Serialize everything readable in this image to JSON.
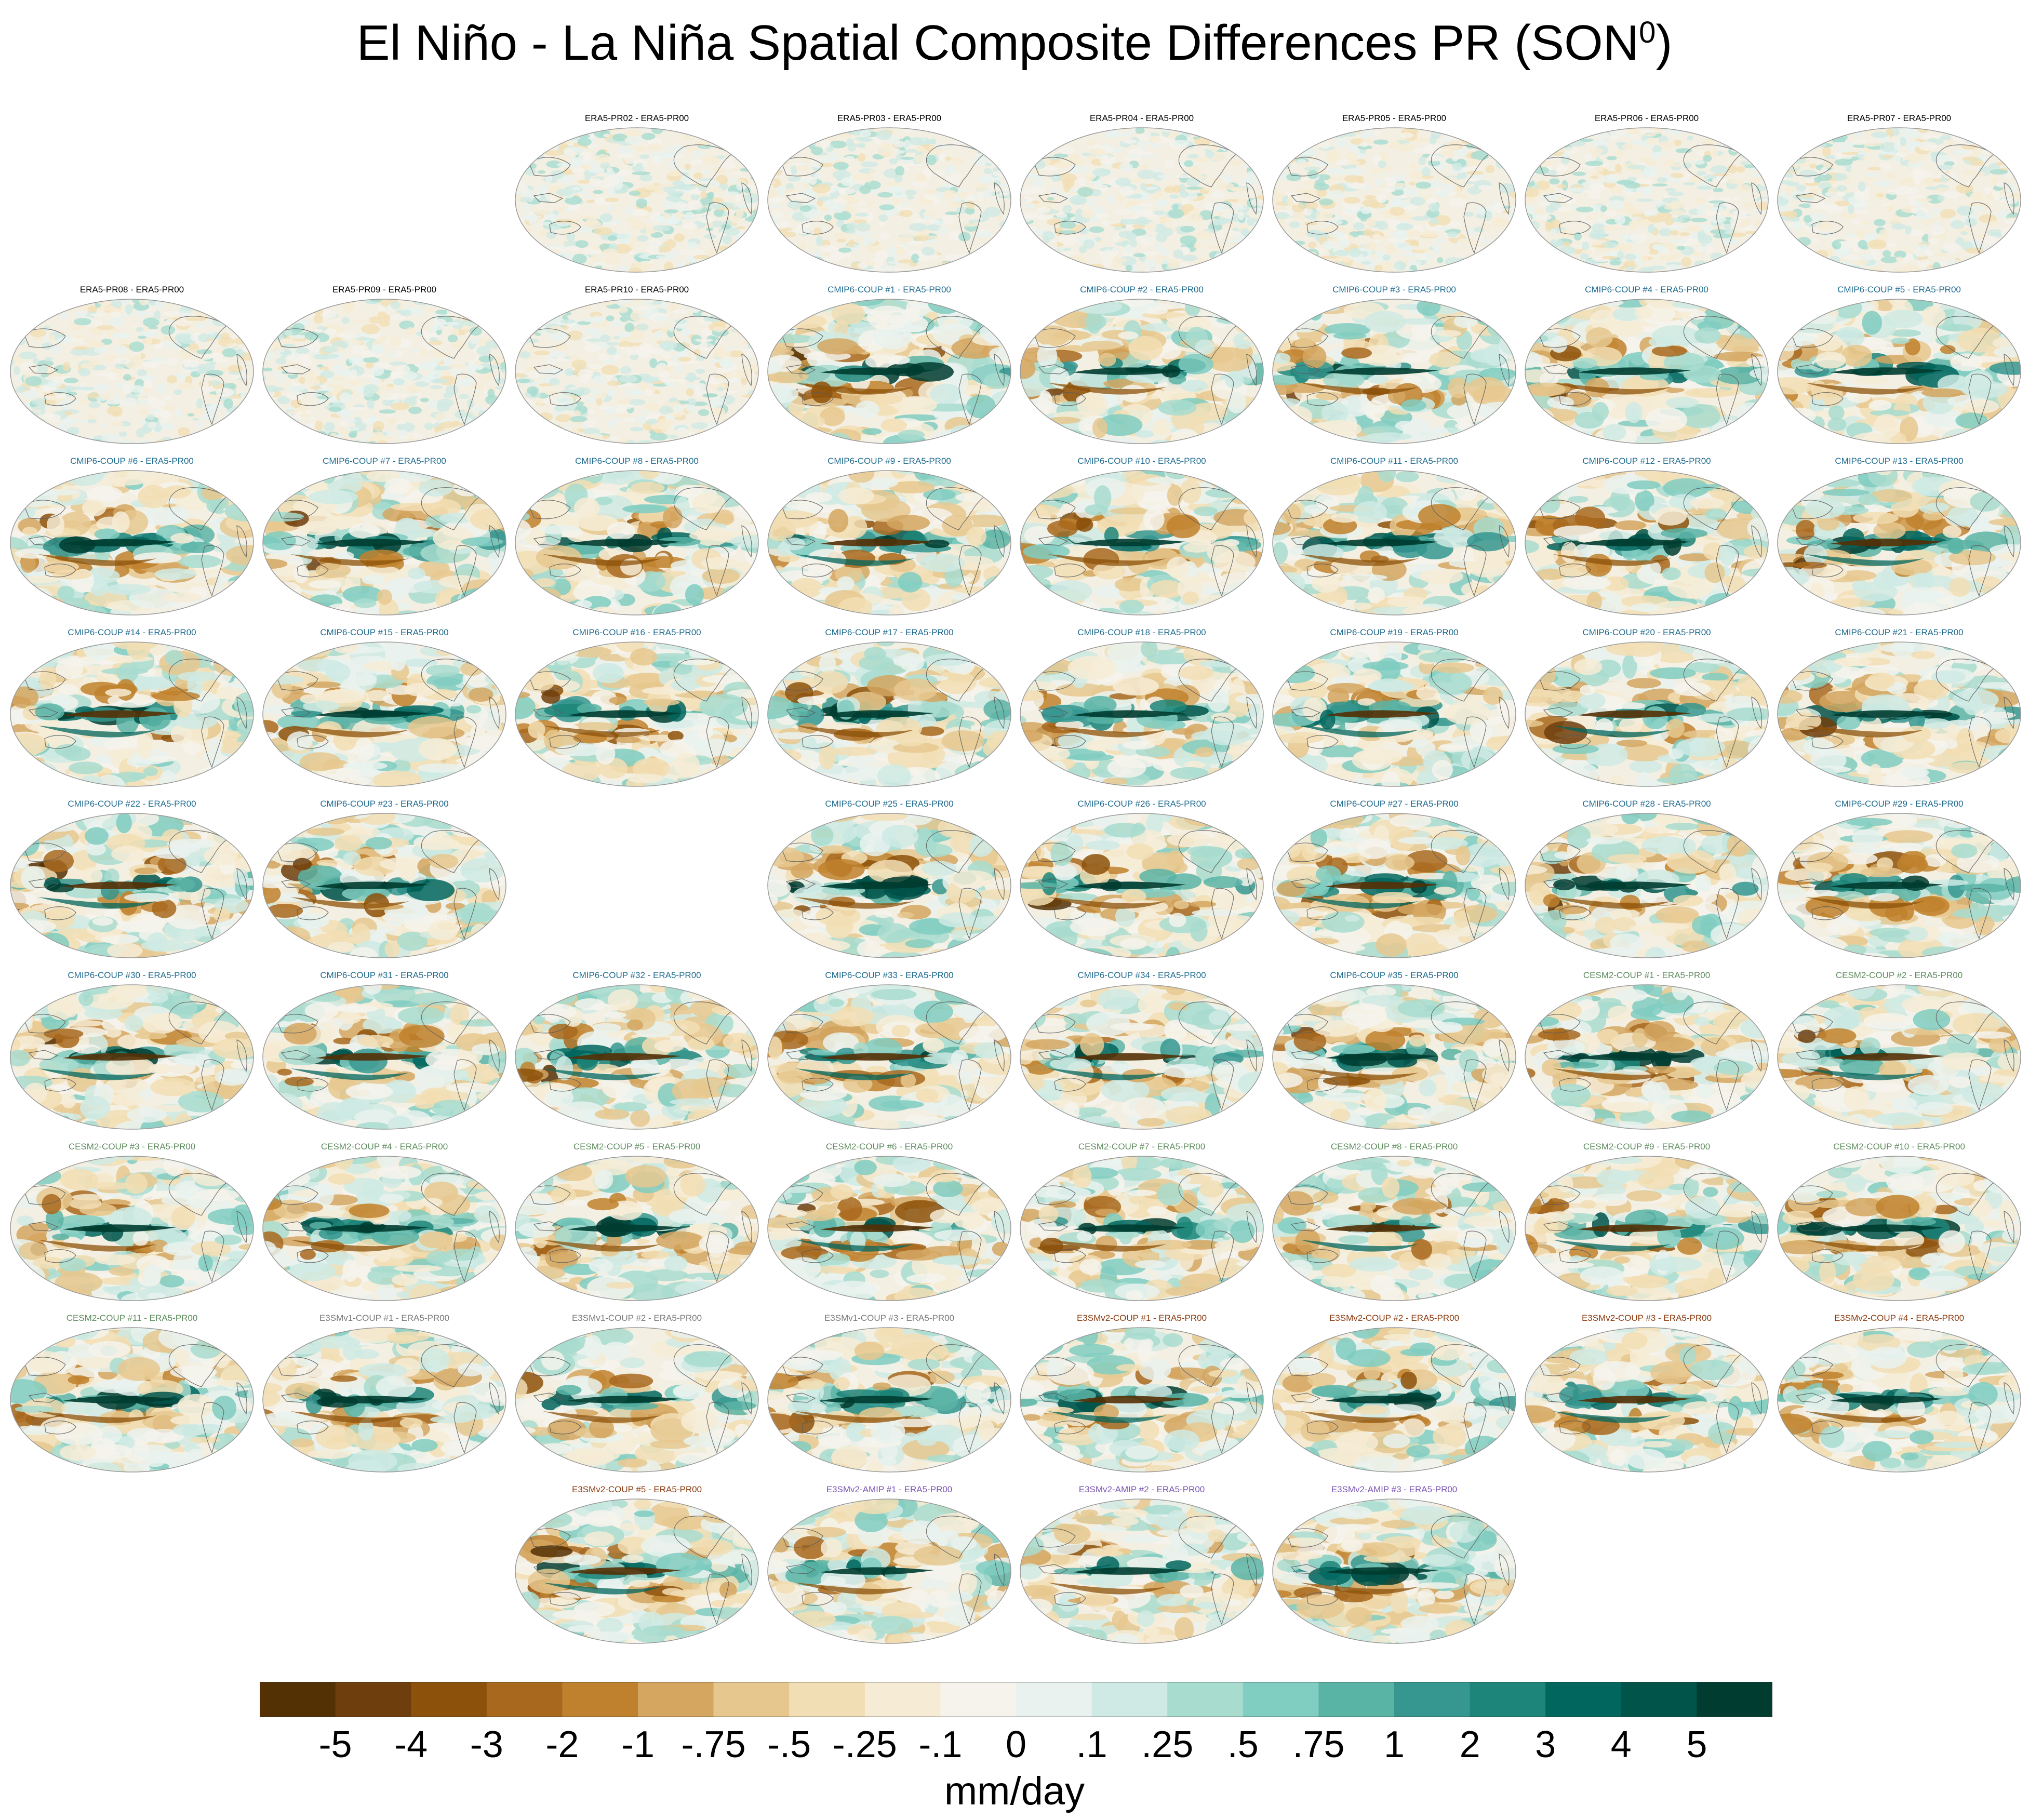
{
  "figure": {
    "title_main": "El Niño - La Niña Spatial Composite Differences PR (SON",
    "title_sup": "0",
    "title_close": ")"
  },
  "group_colors": {
    "ERA5": "#000000",
    "CMIP6": "#1f6b8f",
    "CESM2": "#5e8c5e",
    "E3SMv1": "#7a7a7a",
    "E3SMv2-COUP": "#8b3a0e",
    "E3SMv2-AMIP": "#7a55b5"
  },
  "chart_data": {
    "type": "heatmap",
    "description_unit": "mm/day",
    "colorbar": {
      "label": "mm/day",
      "tick_labels": [
        "-5",
        "-4",
        "-3",
        "-2",
        "-1",
        "-.75",
        "-.5",
        "-.25",
        "-.1",
        "0",
        ".1",
        ".25",
        ".5",
        ".75",
        "1",
        "2",
        "3",
        "4",
        "5"
      ],
      "colors": [
        "#543005",
        "#6e3e0d",
        "#8c510a",
        "#a8691f",
        "#bf812d",
        "#d4a660",
        "#e6c88f",
        "#f2deb4",
        "#f6ecd6",
        "#f5f3ec",
        "#e9f2ef",
        "#cfeae4",
        "#a8dccf",
        "#80cdc1",
        "#5ab4a6",
        "#35978f",
        "#1d8579",
        "#01665e",
        "#00544a",
        "#003c30"
      ]
    },
    "panels": [
      {
        "label": "ERA5-PR02 - ERA5-PR00",
        "group": "ERA5",
        "row": 0,
        "col": 2
      },
      {
        "label": "ERA5-PR03 - ERA5-PR00",
        "group": "ERA5",
        "row": 0,
        "col": 3
      },
      {
        "label": "ERA5-PR04 - ERA5-PR00",
        "group": "ERA5",
        "row": 0,
        "col": 4
      },
      {
        "label": "ERA5-PR05 - ERA5-PR00",
        "group": "ERA5",
        "row": 0,
        "col": 5
      },
      {
        "label": "ERA5-PR06 - ERA5-PR00",
        "group": "ERA5",
        "row": 0,
        "col": 6
      },
      {
        "label": "ERA5-PR07 - ERA5-PR00",
        "group": "ERA5",
        "row": 0,
        "col": 7
      },
      {
        "label": "ERA5-PR08 - ERA5-PR00",
        "group": "ERA5",
        "row": 1,
        "col": 0
      },
      {
        "label": "ERA5-PR09 - ERA5-PR00",
        "group": "ERA5",
        "row": 1,
        "col": 1
      },
      {
        "label": "ERA5-PR10 - ERA5-PR00",
        "group": "ERA5",
        "row": 1,
        "col": 2
      },
      {
        "label": "CMIP6-COUP  #1 - ERA5-PR00",
        "group": "CMIP6",
        "row": 1,
        "col": 3
      },
      {
        "label": "CMIP6-COUP  #2 - ERA5-PR00",
        "group": "CMIP6",
        "row": 1,
        "col": 4
      },
      {
        "label": "CMIP6-COUP  #3 - ERA5-PR00",
        "group": "CMIP6",
        "row": 1,
        "col": 5
      },
      {
        "label": "CMIP6-COUP  #4 - ERA5-PR00",
        "group": "CMIP6",
        "row": 1,
        "col": 6
      },
      {
        "label": "CMIP6-COUP  #5 - ERA5-PR00",
        "group": "CMIP6",
        "row": 1,
        "col": 7
      },
      {
        "label": "CMIP6-COUP  #6 - ERA5-PR00",
        "group": "CMIP6",
        "row": 2,
        "col": 0
      },
      {
        "label": "CMIP6-COUP  #7 - ERA5-PR00",
        "group": "CMIP6",
        "row": 2,
        "col": 1
      },
      {
        "label": "CMIP6-COUP  #8 - ERA5-PR00",
        "group": "CMIP6",
        "row": 2,
        "col": 2
      },
      {
        "label": "CMIP6-COUP  #9 - ERA5-PR00",
        "group": "CMIP6",
        "row": 2,
        "col": 3
      },
      {
        "label": "CMIP6-COUP  #10 - ERA5-PR00",
        "group": "CMIP6",
        "row": 2,
        "col": 4
      },
      {
        "label": "CMIP6-COUP  #11 - ERA5-PR00",
        "group": "CMIP6",
        "row": 2,
        "col": 5
      },
      {
        "label": "CMIP6-COUP  #12 - ERA5-PR00",
        "group": "CMIP6",
        "row": 2,
        "col": 6
      },
      {
        "label": "CMIP6-COUP  #13 - ERA5-PR00",
        "group": "CMIP6",
        "row": 2,
        "col": 7
      },
      {
        "label": "CMIP6-COUP  #14 - ERA5-PR00",
        "group": "CMIP6",
        "row": 3,
        "col": 0
      },
      {
        "label": "CMIP6-COUP  #15 - ERA5-PR00",
        "group": "CMIP6",
        "row": 3,
        "col": 1
      },
      {
        "label": "CMIP6-COUP  #16 - ERA5-PR00",
        "group": "CMIP6",
        "row": 3,
        "col": 2
      },
      {
        "label": "CMIP6-COUP  #17 - ERA5-PR00",
        "group": "CMIP6",
        "row": 3,
        "col": 3
      },
      {
        "label": "CMIP6-COUP  #18 - ERA5-PR00",
        "group": "CMIP6",
        "row": 3,
        "col": 4
      },
      {
        "label": "CMIP6-COUP  #19 - ERA5-PR00",
        "group": "CMIP6",
        "row": 3,
        "col": 5
      },
      {
        "label": "CMIP6-COUP  #20 - ERA5-PR00",
        "group": "CMIP6",
        "row": 3,
        "col": 6
      },
      {
        "label": "CMIP6-COUP  #21 - ERA5-PR00",
        "group": "CMIP6",
        "row": 3,
        "col": 7
      },
      {
        "label": "CMIP6-COUP  #22 - ERA5-PR00",
        "group": "CMIP6",
        "row": 4,
        "col": 0
      },
      {
        "label": "CMIP6-COUP  #23 - ERA5-PR00",
        "group": "CMIP6",
        "row": 4,
        "col": 1
      },
      {
        "label": "CMIP6-COUP  #25 - ERA5-PR00",
        "group": "CMIP6",
        "row": 4,
        "col": 3
      },
      {
        "label": "CMIP6-COUP  #26 - ERA5-PR00",
        "group": "CMIP6",
        "row": 4,
        "col": 4
      },
      {
        "label": "CMIP6-COUP  #27 - ERA5-PR00",
        "group": "CMIP6",
        "row": 4,
        "col": 5
      },
      {
        "label": "CMIP6-COUP  #28 - ERA5-PR00",
        "group": "CMIP6",
        "row": 4,
        "col": 6
      },
      {
        "label": "CMIP6-COUP  #29 - ERA5-PR00",
        "group": "CMIP6",
        "row": 4,
        "col": 7
      },
      {
        "label": "CMIP6-COUP  #30 - ERA5-PR00",
        "group": "CMIP6",
        "row": 5,
        "col": 0
      },
      {
        "label": "CMIP6-COUP  #31 - ERA5-PR00",
        "group": "CMIP6",
        "row": 5,
        "col": 1
      },
      {
        "label": "CMIP6-COUP  #32 - ERA5-PR00",
        "group": "CMIP6",
        "row": 5,
        "col": 2
      },
      {
        "label": "CMIP6-COUP  #33 - ERA5-PR00",
        "group": "CMIP6",
        "row": 5,
        "col": 3
      },
      {
        "label": "CMIP6-COUP  #34 - ERA5-PR00",
        "group": "CMIP6",
        "row": 5,
        "col": 4
      },
      {
        "label": "CMIP6-COUP  #35 - ERA5-PR00",
        "group": "CMIP6",
        "row": 5,
        "col": 5
      },
      {
        "label": "CESM2-COUP  #1 - ERA5-PR00",
        "group": "CESM2",
        "row": 5,
        "col": 6
      },
      {
        "label": "CESM2-COUP  #2 - ERA5-PR00",
        "group": "CESM2",
        "row": 5,
        "col": 7
      },
      {
        "label": "CESM2-COUP  #3 - ERA5-PR00",
        "group": "CESM2",
        "row": 6,
        "col": 0
      },
      {
        "label": "CESM2-COUP  #4 - ERA5-PR00",
        "group": "CESM2",
        "row": 6,
        "col": 1
      },
      {
        "label": "CESM2-COUP  #5 - ERA5-PR00",
        "group": "CESM2",
        "row": 6,
        "col": 2
      },
      {
        "label": "CESM2-COUP  #6 - ERA5-PR00",
        "group": "CESM2",
        "row": 6,
        "col": 3
      },
      {
        "label": "CESM2-COUP  #7 - ERA5-PR00",
        "group": "CESM2",
        "row": 6,
        "col": 4
      },
      {
        "label": "CESM2-COUP  #8 - ERA5-PR00",
        "group": "CESM2",
        "row": 6,
        "col": 5
      },
      {
        "label": "CESM2-COUP  #9 - ERA5-PR00",
        "group": "CESM2",
        "row": 6,
        "col": 6
      },
      {
        "label": "CESM2-COUP  #10 - ERA5-PR00",
        "group": "CESM2",
        "row": 6,
        "col": 7
      },
      {
        "label": "CESM2-COUP  #11 - ERA5-PR00",
        "group": "CESM2",
        "row": 7,
        "col": 0
      },
      {
        "label": "E3SMv1-COUP #1 - ERA5-PR00",
        "group": "E3SMv1",
        "row": 7,
        "col": 1
      },
      {
        "label": "E3SMv1-COUP #2 - ERA5-PR00",
        "group": "E3SMv1",
        "row": 7,
        "col": 2
      },
      {
        "label": "E3SMv1-COUP #3 - ERA5-PR00",
        "group": "E3SMv1",
        "row": 7,
        "col": 3
      },
      {
        "label": "E3SMv2-COUP #1 - ERA5-PR00",
        "group": "E3SMv2-COUP",
        "row": 7,
        "col": 4
      },
      {
        "label": "E3SMv2-COUP #2 - ERA5-PR00",
        "group": "E3SMv2-COUP",
        "row": 7,
        "col": 5
      },
      {
        "label": "E3SMv2-COUP #3 - ERA5-PR00",
        "group": "E3SMv2-COUP",
        "row": 7,
        "col": 6
      },
      {
        "label": "E3SMv2-COUP #4 - ERA5-PR00",
        "group": "E3SMv2-COUP",
        "row": 7,
        "col": 7
      },
      {
        "label": "E3SMv2-COUP #5 - ERA5-PR00",
        "group": "E3SMv2-COUP",
        "row": 8,
        "col": 2
      },
      {
        "label": "E3SMv2-AMIP #1 - ERA5-PR00",
        "group": "E3SMv2-AMIP",
        "row": 8,
        "col": 3
      },
      {
        "label": "E3SMv2-AMIP #2 - ERA5-PR00",
        "group": "E3SMv2-AMIP",
        "row": 8,
        "col": 4
      },
      {
        "label": "E3SMv2-AMIP #3 - ERA5-PR00",
        "group": "E3SMv2-AMIP",
        "row": 8,
        "col": 5
      }
    ]
  }
}
